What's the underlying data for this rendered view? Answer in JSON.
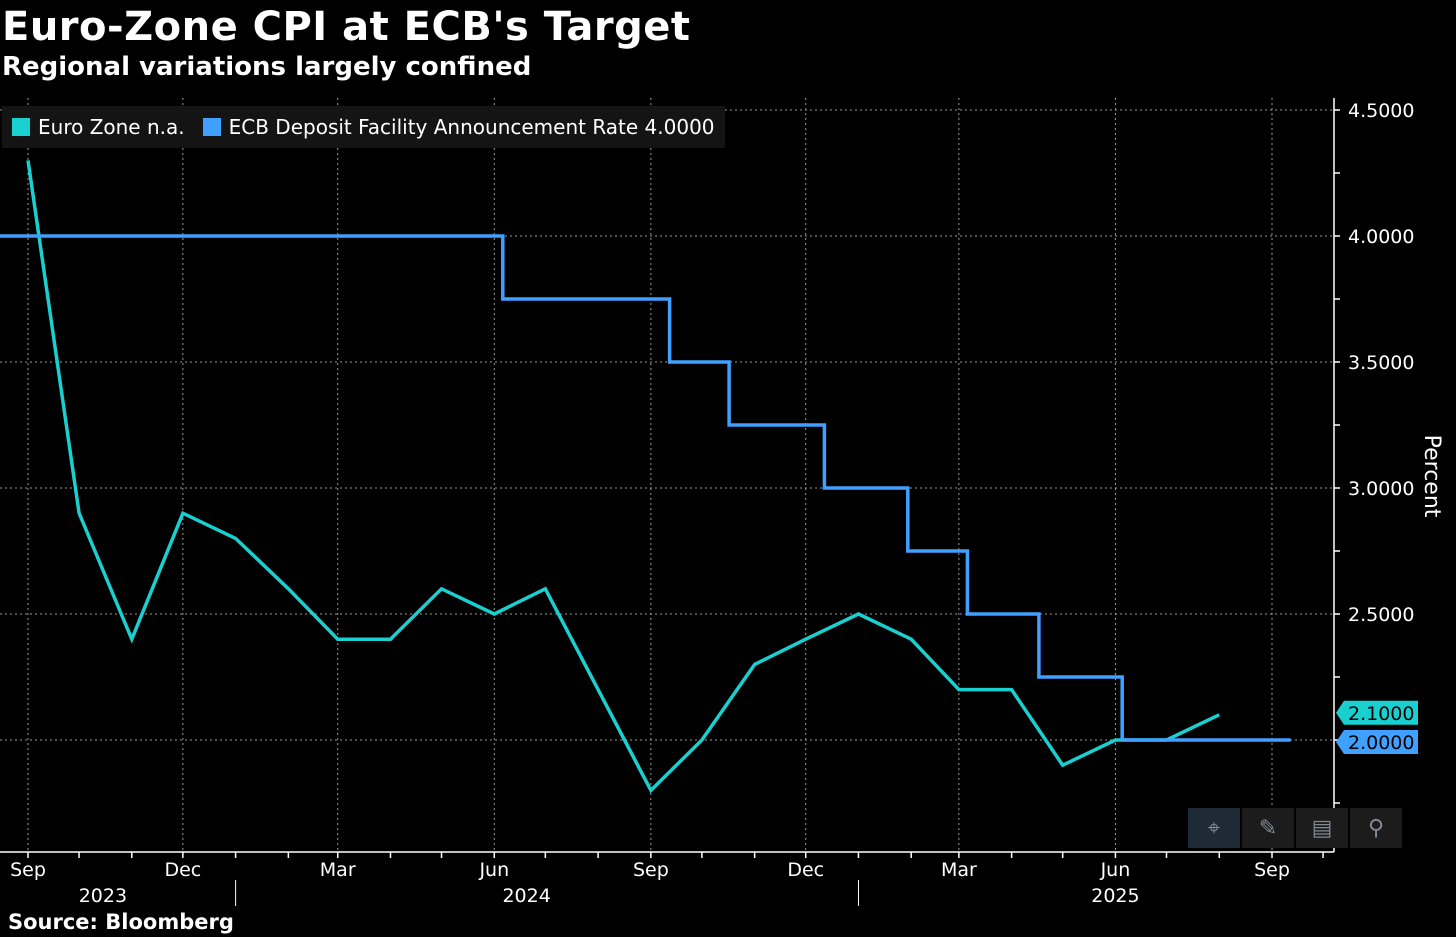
{
  "title": "Euro-Zone CPI at ECB's Target",
  "subtitle": "Regional variations largely confined",
  "source": "Source: Bloomberg",
  "legend": [
    {
      "label": "Euro Zone n.a.",
      "color": "#19cfcf"
    },
    {
      "label": "ECB Deposit Facility Announcement Rate 4.0000",
      "color": "#3fa0ff"
    }
  ],
  "toolbar": {
    "icons": [
      "crosshair-icon",
      "pencil-icon",
      "table-icon",
      "magnify-icon"
    ]
  },
  "chart_data": {
    "type": "line",
    "ylabel": "Percent",
    "ylim": [
      1.75,
      4.55
    ],
    "yticks": [
      2.5,
      3.0,
      3.5,
      4.0,
      4.5
    ],
    "ytick_labels": [
      "2.5000",
      "3.0000",
      "3.5000",
      "4.0000",
      "4.5000"
    ],
    "y_axis_side": "right",
    "grid": true,
    "legend_position": "top-left",
    "x_month_labels": [
      "Sep",
      "Dec",
      "Mar",
      "Jun",
      "Sep",
      "Dec",
      "Mar",
      "Jun",
      "Sep"
    ],
    "x_month_label_dates": [
      "2023-09",
      "2023-12",
      "2024-03",
      "2024-06",
      "2024-09",
      "2024-12",
      "2025-03",
      "2025-06",
      "2025-09"
    ],
    "x_year_labels": [
      "2023",
      "2024",
      "2025"
    ],
    "series": [
      {
        "name": "Euro Zone",
        "color": "#19cfcf",
        "last_value_label": "2.1000",
        "x": [
          "2023-09",
          "2023-10",
          "2023-11",
          "2023-12",
          "2024-01",
          "2024-02",
          "2024-03",
          "2024-04",
          "2024-05",
          "2024-06",
          "2024-07",
          "2024-08",
          "2024-09",
          "2024-10",
          "2024-11",
          "2024-12",
          "2025-01",
          "2025-02",
          "2025-03",
          "2025-04",
          "2025-05",
          "2025-06",
          "2025-07",
          "2025-08"
        ],
        "values": [
          4.3,
          2.9,
          2.4,
          2.9,
          2.8,
          2.6,
          2.4,
          2.4,
          2.6,
          2.5,
          2.6,
          2.2,
          1.8,
          2.0,
          2.3,
          2.4,
          2.5,
          2.4,
          2.2,
          2.2,
          1.9,
          2.0,
          2.0,
          2.1
        ]
      },
      {
        "name": "ECB Deposit Facility Announcement Rate",
        "color": "#3fa0ff",
        "last_value_label": "2.0000",
        "step": true,
        "x": [
          "2023-08-20",
          "2024-06-06",
          "2024-09-12",
          "2024-10-17",
          "2024-12-12",
          "2025-01-30",
          "2025-03-06",
          "2025-04-17",
          "2025-06-05",
          "2025-09-11"
        ],
        "values": [
          4.0,
          3.75,
          3.5,
          3.25,
          3.0,
          2.75,
          2.5,
          2.25,
          2.0,
          2.0
        ]
      }
    ]
  }
}
